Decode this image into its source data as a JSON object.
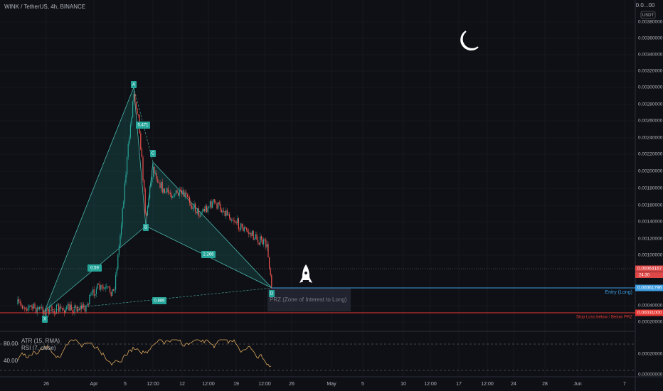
{
  "header": {
    "title": "WINK / TetherUS, 4h, BINANCE",
    "currency": "USDT",
    "top_price": "0.0...00"
  },
  "price_axis": {
    "labels": [
      "0.00380000",
      "0.00360000",
      "0.00340000",
      "0.00320000",
      "0.00300000",
      "0.00280000",
      "0.00260000",
      "0.00240000",
      "0.00220000",
      "0.00200000",
      "0.00180000",
      "0.00160000",
      "0.00140000",
      "0.00120000",
      "0.00100000",
      "0.00040000",
      "0.00020000"
    ]
  },
  "price_tags": {
    "current": "0.00064167",
    "countdown": "24:30",
    "entry": "0.00061796",
    "stop": "0.00031000"
  },
  "time_axis": {
    "labels": [
      "26",
      "Apr",
      "5",
      "12:00",
      "12",
      "12:00",
      "19",
      "12:00",
      "26",
      "May",
      "5",
      "10",
      "12:00",
      "17",
      "12:00",
      "24",
      "28",
      "Jun",
      "7"
    ]
  },
  "pattern": {
    "points": [
      "X",
      "A",
      "B",
      "C",
      "D"
    ],
    "ratios": [
      "0.471",
      "0.59",
      "2.266",
      "0.886"
    ]
  },
  "annotations": {
    "prz": "PRZ (Zone of Interest to Long)",
    "entry": "Entry (Long)",
    "stop": "Stop Loss below / Below PRZ"
  },
  "indicator": {
    "atr": "ATR (15, RMA)",
    "rsi": "RSI (7, close)",
    "levels": [
      "80.00",
      "40.00"
    ],
    "axis": [
      "0.00020000",
      "0.00000000"
    ]
  }
}
